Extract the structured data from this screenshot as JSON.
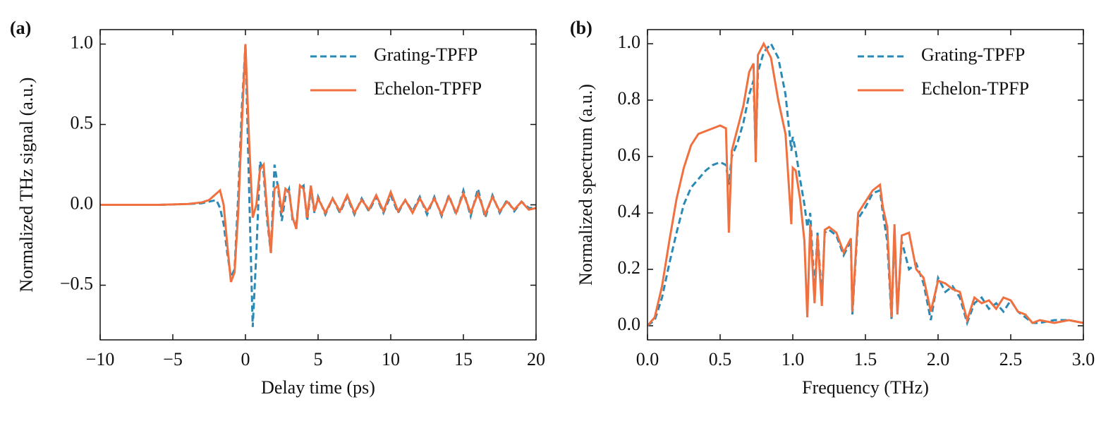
{
  "chart_data": [
    {
      "type": "line",
      "panel_label": "(a)",
      "xlabel": "Delay time (ps)",
      "ylabel": "Normalized THz signal (a.u.)",
      "xlim": [
        -10,
        20
      ],
      "ylim": [
        -0.84,
        1.09
      ],
      "xticks": [
        {
          "value": -10,
          "label": "−10"
        },
        {
          "value": -5,
          "label": "−5"
        },
        0,
        5,
        10,
        15,
        20
      ],
      "yticks": [
        {
          "value": -0.5,
          "label": "−0.5"
        },
        {
          "value": 0,
          "label": "0.0"
        },
        0.5,
        {
          "value": 1,
          "label": "1.0"
        }
      ],
      "legend": "upper right",
      "x": [
        -10,
        -8,
        -6,
        -4,
        -3,
        -2.5,
        -2,
        -1.75,
        -1.5,
        -1.25,
        -1,
        -0.75,
        -0.5,
        -0.25,
        0,
        0.25,
        0.5,
        0.75,
        1,
        1.25,
        1.5,
        1.75,
        2,
        2.25,
        2.5,
        2.75,
        3,
        3.25,
        3.5,
        3.75,
        4,
        4.25,
        4.5,
        4.75,
        5,
        5.5,
        6,
        6.5,
        7,
        7.5,
        8,
        8.5,
        9,
        9.5,
        10,
        10.5,
        11,
        11.5,
        12,
        12.5,
        13,
        13.5,
        14,
        14.5,
        15,
        15.5,
        16,
        16.5,
        17,
        17.5,
        18,
        18.5,
        19,
        19.5,
        20
      ],
      "series": [
        {
          "name": "Grating-TPFP",
          "color": "#2a8ab5",
          "linestyle": "dashed",
          "values": [
            0,
            0,
            0,
            0.005,
            0.01,
            0.02,
            0.03,
            -0.02,
            -0.12,
            -0.3,
            -0.45,
            -0.4,
            0.05,
            0.6,
            1.0,
            0.1,
            -0.76,
            -0.3,
            0.27,
            0.2,
            -0.1,
            -0.3,
            0.25,
            0.1,
            -0.1,
            0.05,
            0.1,
            -0.1,
            -0.12,
            0.1,
            0.12,
            -0.1,
            0.1,
            -0.05,
            0.05,
            -0.06,
            0.04,
            -0.05,
            0.05,
            -0.06,
            0.04,
            -0.04,
            0.05,
            -0.05,
            0.06,
            -0.05,
            0.03,
            -0.04,
            0.05,
            -0.06,
            0.05,
            -0.07,
            0.06,
            -0.06,
            0.09,
            -0.07,
            0.1,
            -0.08,
            0.06,
            -0.05,
            0.03,
            -0.04,
            0.02,
            -0.02,
            -0.02
          ]
        },
        {
          "name": "Echelon-TPFP",
          "color": "#f0703f",
          "linestyle": "solid",
          "values": [
            0,
            0,
            0,
            0.005,
            0.015,
            0.03,
            0.07,
            0.09,
            0.0,
            -0.25,
            -0.48,
            -0.42,
            -0.05,
            0.5,
            1.0,
            0.4,
            -0.08,
            0.0,
            0.22,
            0.25,
            -0.05,
            -0.3,
            0.1,
            0.12,
            -0.05,
            0.1,
            0.08,
            -0.08,
            -0.15,
            0.12,
            0.1,
            -0.08,
            0.12,
            -0.04,
            0.04,
            -0.05,
            0.04,
            -0.04,
            0.06,
            -0.05,
            0.03,
            -0.03,
            0.06,
            -0.04,
            0.08,
            -0.04,
            0.03,
            -0.05,
            0.04,
            -0.04,
            0.04,
            -0.06,
            0.05,
            -0.05,
            0.07,
            -0.05,
            0.07,
            -0.06,
            0.05,
            -0.04,
            0.02,
            -0.03,
            0.02,
            -0.03,
            -0.02
          ]
        }
      ]
    },
    {
      "type": "line",
      "panel_label": "(b)",
      "xlabel": "Frequency (THz)",
      "ylabel": "Normalized spectrum (a.u.)",
      "xlim": [
        0,
        3
      ],
      "ylim": [
        -0.05,
        1.05
      ],
      "xticks": [
        {
          "value": 0,
          "label": "0.0"
        },
        0.5,
        {
          "value": 1,
          "label": "1.0"
        },
        1.5,
        {
          "value": 2,
          "label": "2.0"
        },
        2.5,
        {
          "value": 3,
          "label": "3.0"
        }
      ],
      "yticks": [
        {
          "value": 0,
          "label": "0.0"
        },
        0.2,
        0.4,
        0.6,
        0.8,
        {
          "value": 1,
          "label": "1.0"
        }
      ],
      "legend": "upper right",
      "x": [
        0,
        0.05,
        0.1,
        0.15,
        0.2,
        0.25,
        0.3,
        0.35,
        0.4,
        0.45,
        0.5,
        0.54,
        0.56,
        0.58,
        0.62,
        0.66,
        0.7,
        0.73,
        0.745,
        0.76,
        0.8,
        0.85,
        0.9,
        0.95,
        0.99,
        1.0,
        1.02,
        1.05,
        1.08,
        1.1,
        1.12,
        1.15,
        1.17,
        1.2,
        1.22,
        1.25,
        1.3,
        1.35,
        1.4,
        1.41,
        1.45,
        1.5,
        1.55,
        1.6,
        1.62,
        1.65,
        1.68,
        1.7,
        1.72,
        1.75,
        1.8,
        1.85,
        1.9,
        1.95,
        2.0,
        2.05,
        2.1,
        2.15,
        2.2,
        2.25,
        2.3,
        2.35,
        2.4,
        2.45,
        2.5,
        2.55,
        2.6,
        2.65,
        2.7,
        2.8,
        2.9,
        3.0
      ],
      "series": [
        {
          "name": "Grating-TPFP",
          "color": "#2a8ab5",
          "linestyle": "dashed",
          "values": [
            0.0,
            0.02,
            0.1,
            0.22,
            0.33,
            0.43,
            0.49,
            0.52,
            0.55,
            0.57,
            0.58,
            0.57,
            0.5,
            0.6,
            0.65,
            0.72,
            0.82,
            0.87,
            0.6,
            0.9,
            0.97,
            1.0,
            0.95,
            0.82,
            0.62,
            0.67,
            0.62,
            0.52,
            0.43,
            0.35,
            0.4,
            0.12,
            0.33,
            0.1,
            0.33,
            0.34,
            0.32,
            0.25,
            0.3,
            0.04,
            0.38,
            0.42,
            0.47,
            0.48,
            0.4,
            0.3,
            0.02,
            0.34,
            0.05,
            0.3,
            0.2,
            0.22,
            0.15,
            0.02,
            0.17,
            0.12,
            0.14,
            0.1,
            0.01,
            0.08,
            0.1,
            0.06,
            0.08,
            0.05,
            0.09,
            0.05,
            0.03,
            0.01,
            0.01,
            0.02,
            0.02,
            0.01
          ]
        },
        {
          "name": "Echelon-TPFP",
          "color": "#f0703f",
          "linestyle": "solid",
          "values": [
            0.0,
            0.03,
            0.14,
            0.3,
            0.45,
            0.56,
            0.64,
            0.68,
            0.69,
            0.7,
            0.71,
            0.7,
            0.33,
            0.62,
            0.7,
            0.78,
            0.9,
            0.93,
            0.58,
            0.96,
            1.0,
            0.95,
            0.8,
            0.68,
            0.36,
            0.56,
            0.55,
            0.45,
            0.3,
            0.03,
            0.36,
            0.08,
            0.32,
            0.07,
            0.34,
            0.35,
            0.33,
            0.26,
            0.31,
            0.05,
            0.4,
            0.44,
            0.48,
            0.5,
            0.42,
            0.35,
            0.03,
            0.36,
            0.04,
            0.32,
            0.33,
            0.2,
            0.17,
            0.05,
            0.16,
            0.15,
            0.13,
            0.12,
            0.02,
            0.1,
            0.08,
            0.09,
            0.06,
            0.1,
            0.09,
            0.05,
            0.04,
            0.01,
            0.02,
            0.01,
            0.02,
            0.01
          ]
        }
      ]
    }
  ]
}
